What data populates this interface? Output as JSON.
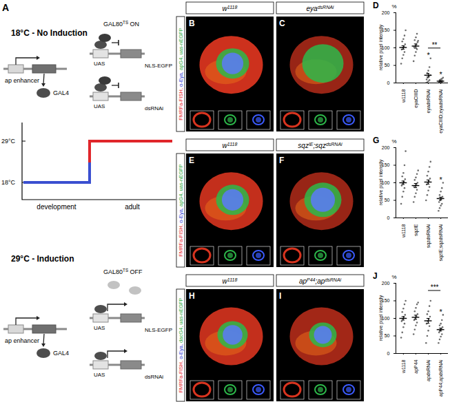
{
  "figure": {
    "panel_a": {
      "label": "A",
      "top": {
        "title": "18°C - No Induction",
        "gal80": [
          {
            "t": "GAL80"
          },
          {
            "t": "TS",
            "sup": true
          },
          {
            "t": " ON"
          }
        ],
        "enhancer": "ap enhancer",
        "gal4": "GAL4",
        "uas": "UAS",
        "reporter": "NLS-EGFP",
        "rnai": "dsRNAi"
      },
      "temperature": {
        "high": "29°C",
        "low": "18°C",
        "phases": [
          "development",
          "adult"
        ]
      },
      "bottom": {
        "title": "29°C - Induction",
        "gal80": [
          {
            "t": "GAL80"
          },
          {
            "t": "TS",
            "sup": true
          },
          {
            "t": " OFF"
          }
        ],
        "enhancer": "ap enhancer",
        "gal4": "GAL4",
        "uas": "UAS",
        "reporter": "NLS-EGFP",
        "rnai": "dsRNAi"
      }
    },
    "images": [
      {
        "letters": [
          "B",
          "C"
        ],
        "headers": [
          [
            {
              "t": "w"
            },
            {
              "t": "1118",
              "sup": true
            }
          ],
          [
            {
              "t": "eya"
            },
            {
              "t": "dsRNAi",
              "sup": true
            }
          ]
        ],
        "side": [
          {
            "t": "FMRFa-FISH, ",
            "color": "#e8251f"
          },
          {
            "t": "α-Eya, ",
            "color": "#2a3bd6"
          },
          {
            "t": "apG4, uas-nEGFP",
            "color": "#1fa834"
          }
        ]
      },
      {
        "letters": [
          "E",
          "F"
        ],
        "headers": [
          [
            {
              "t": "w"
            },
            {
              "t": "1118",
              "sup": true
            }
          ],
          [
            {
              "t": "sqz"
            },
            {
              "t": "IE",
              "sup": true
            },
            {
              "t": ";sqz"
            },
            {
              "t": "dsRNAi",
              "sup": true
            }
          ]
        ],
        "side": [
          {
            "t": "FMRFa-FISH, ",
            "color": "#e8251f"
          },
          {
            "t": "α-Eya, ",
            "color": "#2a3bd6"
          },
          {
            "t": "apG4, uas-nEGFP",
            "color": "#1fa834"
          }
        ]
      },
      {
        "letters": [
          "H",
          "I"
        ],
        "headers": [
          [
            {
              "t": "w"
            },
            {
              "t": "1118",
              "sup": true
            }
          ],
          [
            {
              "t": "ap"
            },
            {
              "t": "P44",
              "sup": true
            },
            {
              "t": ";ap"
            },
            {
              "t": "dsRNAi",
              "sup": true
            }
          ]
        ],
        "side": [
          {
            "t": "FMRFa-FISH, ",
            "color": "#e8251f"
          },
          {
            "t": "α-Eya, ",
            "color": "#2a3bd6"
          },
          {
            "t": "dacG4, uas-nEGFP",
            "color": "#1fa834"
          }
        ]
      }
    ]
  },
  "chart_data": [
    {
      "type": "strip",
      "title": "D",
      "ylabel": "relative pixel intensity",
      "ylabel_unit": "%",
      "categories": [
        "w1118",
        "eyaCIIID",
        "eyadsRNAi",
        "eyaCIIID;eyadsRNAi"
      ],
      "points": [
        [
          55,
          70,
          80,
          88,
          95,
          100,
          104,
          110,
          118,
          125,
          135,
          150
        ],
        [
          62,
          78,
          88,
          96,
          102,
          106,
          110,
          116,
          122,
          130,
          140,
          120
        ],
        [
          0,
          2,
          5,
          8,
          10,
          15,
          18,
          22,
          28,
          35,
          45,
          70
        ],
        [
          0,
          0,
          1,
          2,
          3,
          4,
          5,
          6,
          8,
          10,
          12,
          15
        ]
      ],
      "means": [
        101,
        105,
        22,
        5
      ],
      "sem": [
        5,
        6,
        5,
        1.5
      ],
      "color": "#6e6e6e",
      "ylim": [
        0,
        200
      ],
      "yticks": [
        0,
        50,
        100,
        150,
        200
      ],
      "annotations": [
        {
          "index": 2,
          "text": "*"
        },
        {
          "index": 3,
          "text": "*"
        }
      ],
      "comparisons": [
        {
          "from": 2,
          "to": 3,
          "text": "**"
        }
      ]
    },
    {
      "type": "strip",
      "title": "G",
      "ylabel": "relative pixel intensity",
      "ylabel_unit": "%",
      "categories": [
        "w1118",
        "sqzIE",
        "sqzdsRNAi",
        "sqzIE;sqzdsRNAi"
      ],
      "points": [
        [
          40,
          60,
          75,
          85,
          92,
          98,
          103,
          110,
          118,
          128,
          150,
          190
        ],
        [
          45,
          60,
          70,
          80,
          88,
          92,
          96,
          100,
          108,
          115,
          125,
          135
        ],
        [
          50,
          65,
          78,
          88,
          95,
          100,
          105,
          112,
          120,
          132,
          145,
          160
        ],
        [
          20,
          28,
          35,
          40,
          45,
          50,
          55,
          60,
          65,
          75,
          85,
          100
        ]
      ],
      "means": [
        100,
        92,
        102,
        55
      ],
      "sem": [
        5,
        6,
        6,
        4
      ],
      "color": "#6e6e6e",
      "ylim": [
        0,
        200
      ],
      "yticks": [
        0,
        50,
        100,
        150,
        200
      ],
      "annotations": [
        {
          "index": 3,
          "text": "*"
        }
      ],
      "comparisons": []
    },
    {
      "type": "strip",
      "title": "J",
      "ylabel": "relative pixel intensity",
      "ylabel_unit": "%",
      "categories": [
        "w1118",
        "apP44",
        "apdsRNAi",
        "apP44;apdsRNAi"
      ],
      "points": [
        [
          45,
          60,
          75,
          85,
          92,
          98,
          104,
          110,
          118,
          128,
          140,
          150
        ],
        [
          55,
          68,
          80,
          88,
          95,
          100,
          106,
          112,
          120,
          130,
          140,
          145
        ],
        [
          30,
          50,
          65,
          78,
          85,
          92,
          98,
          105,
          112,
          120,
          135,
          150
        ],
        [
          30,
          40,
          48,
          55,
          60,
          65,
          70,
          75,
          80,
          85,
          95,
          110
        ]
      ],
      "means": [
        100,
        103,
        93,
        68
      ],
      "sem": [
        5,
        6,
        7,
        4
      ],
      "color": "#6e6e6e",
      "ylim": [
        0,
        200
      ],
      "yticks": [
        0,
        50,
        100,
        150,
        200
      ],
      "annotations": [
        {
          "index": 3,
          "text": "*"
        }
      ],
      "comparisons": [
        {
          "from": 2,
          "to": 3,
          "text": "***"
        }
      ]
    }
  ]
}
